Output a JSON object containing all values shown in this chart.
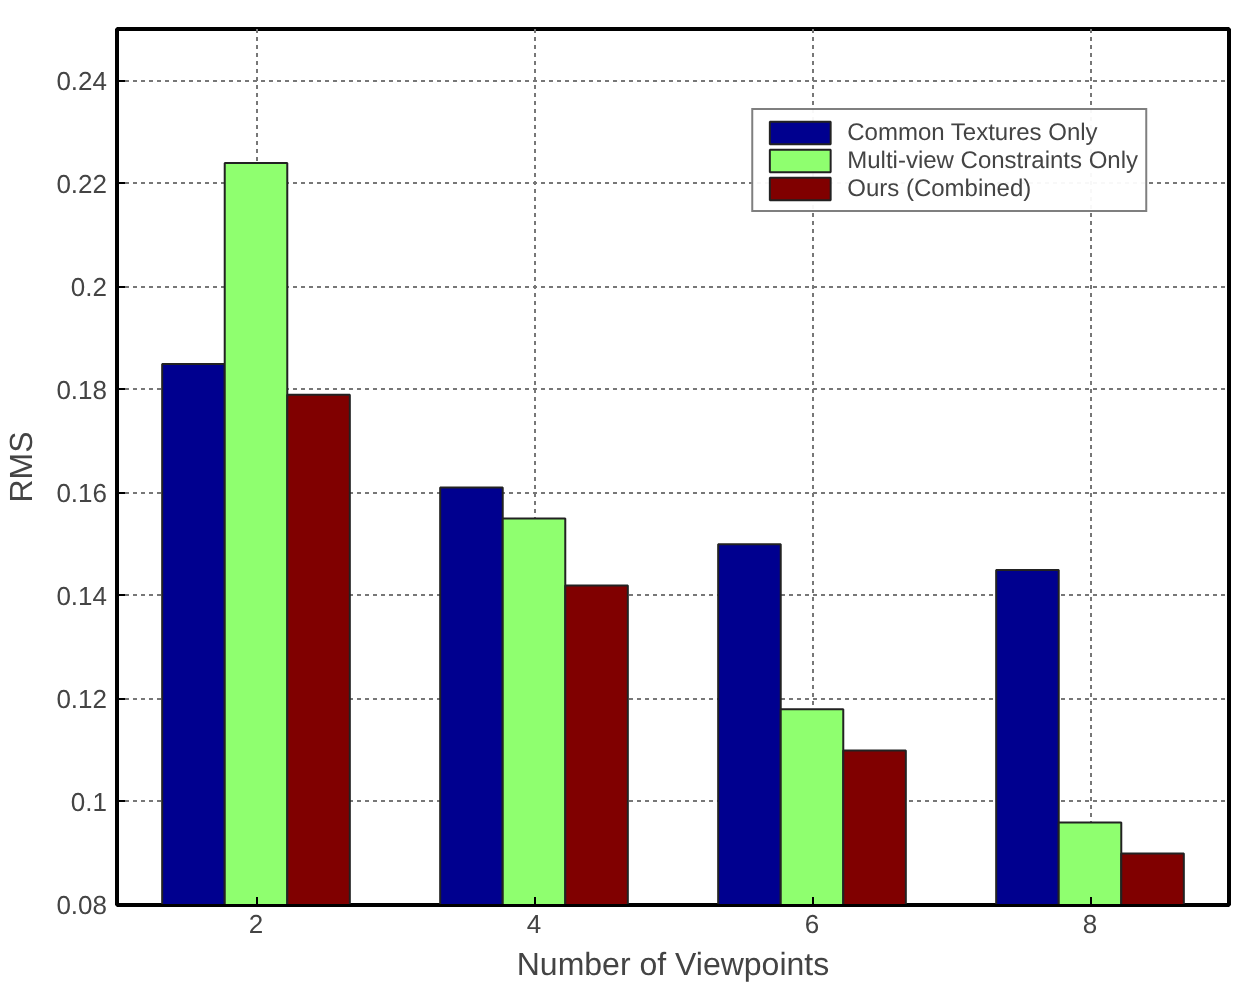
{
  "chart_data": {
    "type": "bar",
    "xlabel": "Number of Viewpoints",
    "ylabel": "RMS",
    "x": [
      2,
      4,
      6,
      8
    ],
    "xlim": [
      1,
      9
    ],
    "xticks": [
      2,
      4,
      6,
      8
    ],
    "ylim": [
      0.08,
      0.25
    ],
    "yticks": [
      0.08,
      0.1,
      0.12,
      0.14,
      0.16,
      0.18,
      0.2,
      0.22,
      0.24
    ],
    "series": [
      {
        "name": "Common Textures Only",
        "color": "#00008f",
        "values": [
          0.185,
          0.161,
          0.15,
          0.145
        ]
      },
      {
        "name": "Multi-view Constraints Only",
        "color": "#8fff6f",
        "values": [
          0.224,
          0.155,
          0.118,
          0.096
        ]
      },
      {
        "name": "Ours (Combined)",
        "color": "#800000",
        "values": [
          0.179,
          0.142,
          0.11,
          0.09
        ]
      }
    ],
    "grid": true,
    "legend": "top right"
  }
}
